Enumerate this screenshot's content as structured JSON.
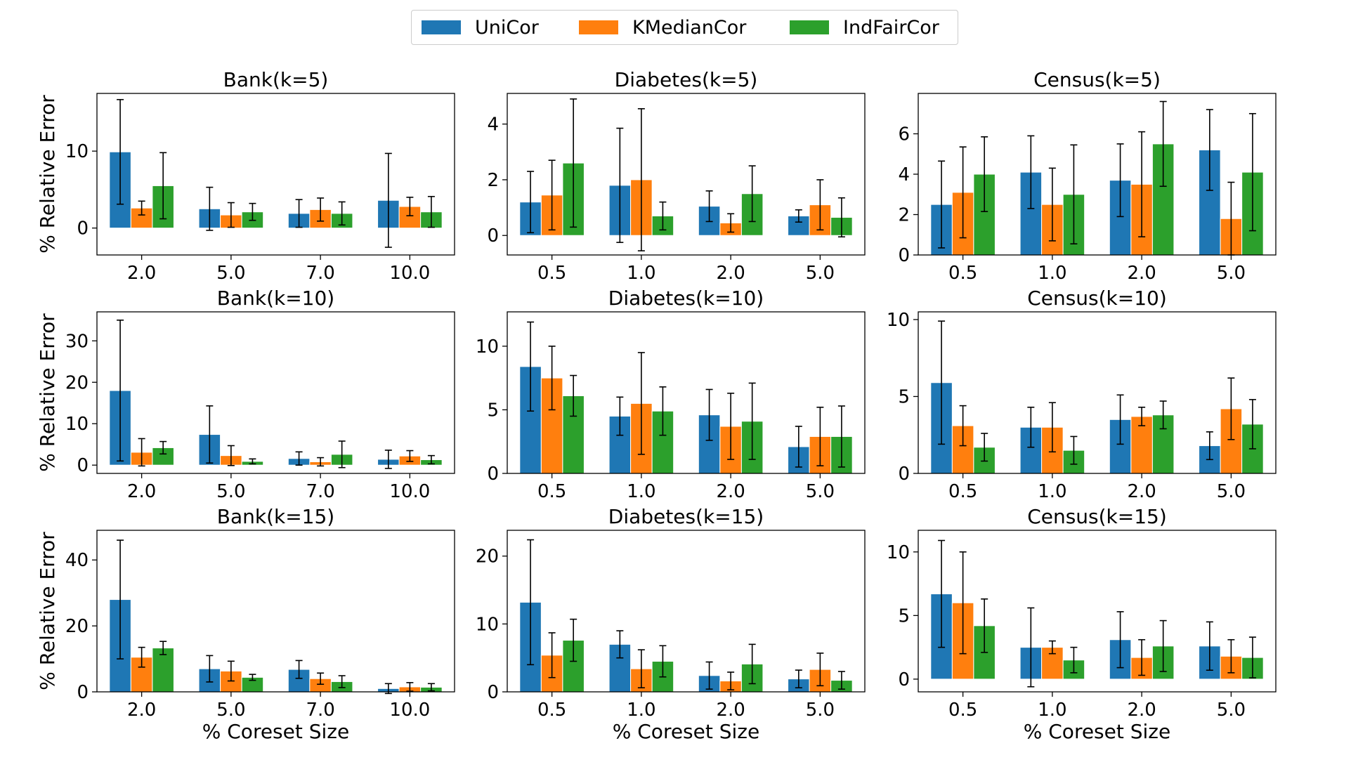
{
  "colors": {
    "UniCor": "#1f77b4",
    "KMedianCor": "#ff7f0e",
    "IndFairCor": "#2ca02c"
  },
  "legend": {
    "placement": "top-center",
    "entries": [
      "UniCor",
      "KMedianCor",
      "IndFairCor"
    ]
  },
  "chart_data": [
    {
      "type": "bar",
      "title": "Bank(k=5)",
      "xlabel": "",
      "ylabel": "% Relative Error",
      "categories": [
        "2.0",
        "5.0",
        "7.0",
        "10.0"
      ],
      "ylim": [
        -3.5,
        17.5
      ],
      "yticks": [
        0,
        10
      ],
      "series": [
        {
          "name": "UniCor",
          "values": [
            9.9,
            2.5,
            1.9,
            3.6
          ],
          "err": [
            6.8,
            2.8,
            1.8,
            6.1
          ]
        },
        {
          "name": "KMedianCor",
          "values": [
            2.6,
            1.7,
            2.4,
            2.8
          ],
          "err": [
            0.9,
            1.6,
            1.5,
            1.2
          ]
        },
        {
          "name": "IndFairCor",
          "values": [
            5.5,
            2.1,
            1.9,
            2.1
          ],
          "err": [
            4.3,
            1.1,
            1.5,
            2.0
          ]
        }
      ]
    },
    {
      "type": "bar",
      "title": "Diabetes(k=5)",
      "xlabel": "",
      "ylabel": "",
      "categories": [
        "0.5",
        "1.0",
        "2.0",
        "5.0"
      ],
      "ylim": [
        -0.7,
        5.1
      ],
      "yticks": [
        0,
        2,
        4
      ],
      "series": [
        {
          "name": "UniCor",
          "values": [
            1.2,
            1.8,
            1.05,
            0.7
          ],
          "err": [
            1.1,
            2.05,
            0.55,
            0.22
          ]
        },
        {
          "name": "KMedianCor",
          "values": [
            1.45,
            2.0,
            0.45,
            1.1
          ],
          "err": [
            1.25,
            2.55,
            0.33,
            0.9
          ]
        },
        {
          "name": "IndFairCor",
          "values": [
            2.6,
            0.7,
            1.5,
            0.65
          ],
          "err": [
            2.3,
            0.5,
            1.0,
            0.7
          ]
        }
      ]
    },
    {
      "type": "bar",
      "title": "Census(k=5)",
      "xlabel": "",
      "ylabel": "",
      "categories": [
        "0.5",
        "1.0",
        "2.0",
        "5.0"
      ],
      "ylim": [
        0,
        8.0
      ],
      "yticks": [
        0,
        2,
        4,
        6
      ],
      "series": [
        {
          "name": "UniCor",
          "values": [
            2.5,
            4.1,
            3.7,
            5.2
          ],
          "err": [
            2.15,
            1.8,
            1.8,
            2.0
          ]
        },
        {
          "name": "KMedianCor",
          "values": [
            3.1,
            2.5,
            3.5,
            1.8
          ],
          "err": [
            2.25,
            1.8,
            2.6,
            1.8
          ]
        },
        {
          "name": "IndFairCor",
          "values": [
            4.0,
            3.0,
            5.5,
            4.1
          ],
          "err": [
            1.85,
            2.45,
            2.1,
            2.9
          ]
        }
      ]
    },
    {
      "type": "bar",
      "title": "Bank(k=10)",
      "xlabel": "",
      "ylabel": "% Relative Error",
      "categories": [
        "2.0",
        "5.0",
        "7.0",
        "10.0"
      ],
      "ylim": [
        -2,
        37
      ],
      "yticks": [
        0,
        10,
        20,
        30
      ],
      "series": [
        {
          "name": "UniCor",
          "values": [
            18.0,
            7.4,
            1.6,
            1.4
          ],
          "err": [
            17.0,
            6.9,
            1.6,
            2.2
          ]
        },
        {
          "name": "KMedianCor",
          "values": [
            3.1,
            2.3,
            0.8,
            2.2
          ],
          "err": [
            3.3,
            2.4,
            1.0,
            1.3
          ]
        },
        {
          "name": "IndFairCor",
          "values": [
            4.2,
            0.9,
            2.6,
            1.3
          ],
          "err": [
            1.5,
            0.6,
            3.2,
            1.0
          ]
        }
      ]
    },
    {
      "type": "bar",
      "title": "Diabetes(k=10)",
      "xlabel": "",
      "ylabel": "",
      "categories": [
        "0.5",
        "1.0",
        "2.0",
        "5.0"
      ],
      "ylim": [
        0,
        12.7
      ],
      "yticks": [
        0,
        5,
        10
      ],
      "series": [
        {
          "name": "UniCor",
          "values": [
            8.4,
            4.5,
            4.6,
            2.1
          ],
          "err": [
            3.5,
            1.5,
            2.0,
            1.6
          ]
        },
        {
          "name": "KMedianCor",
          "values": [
            7.5,
            5.5,
            3.7,
            2.9
          ],
          "err": [
            2.5,
            4.0,
            2.6,
            2.3
          ]
        },
        {
          "name": "IndFairCor",
          "values": [
            6.1,
            4.9,
            4.1,
            2.9
          ],
          "err": [
            1.6,
            1.9,
            3.0,
            2.4
          ]
        }
      ]
    },
    {
      "type": "bar",
      "title": "Census(k=10)",
      "xlabel": "",
      "ylabel": "",
      "categories": [
        "0.5",
        "1.0",
        "2.0",
        "5.0"
      ],
      "ylim": [
        0,
        10.5
      ],
      "yticks": [
        0,
        5,
        10
      ],
      "series": [
        {
          "name": "UniCor",
          "values": [
            5.9,
            3.0,
            3.5,
            1.8
          ],
          "err": [
            4.0,
            1.3,
            1.6,
            0.9
          ]
        },
        {
          "name": "KMedianCor",
          "values": [
            3.1,
            3.0,
            3.7,
            4.2
          ],
          "err": [
            1.3,
            1.6,
            0.6,
            2.0
          ]
        },
        {
          "name": "IndFairCor",
          "values": [
            1.7,
            1.5,
            3.8,
            3.2
          ],
          "err": [
            0.9,
            0.9,
            0.9,
            1.6
          ]
        }
      ]
    },
    {
      "type": "bar",
      "title": "Bank(k=15)",
      "xlabel": "% Coreset Size",
      "ylabel": "% Relative Error",
      "categories": [
        "2.0",
        "5.0",
        "7.0",
        "10.0"
      ],
      "ylim": [
        0,
        49
      ],
      "yticks": [
        0,
        20,
        40
      ],
      "series": [
        {
          "name": "UniCor",
          "values": [
            28.0,
            7.0,
            6.8,
            1.0
          ],
          "err": [
            18.0,
            4.0,
            2.7,
            1.5
          ]
        },
        {
          "name": "KMedianCor",
          "values": [
            10.5,
            6.3,
            4.0,
            1.5
          ],
          "err": [
            3.0,
            3.0,
            1.7,
            1.3
          ]
        },
        {
          "name": "IndFairCor",
          "values": [
            13.3,
            4.4,
            3.1,
            1.4
          ],
          "err": [
            2.0,
            0.9,
            1.8,
            1.1
          ]
        }
      ]
    },
    {
      "type": "bar",
      "title": "Diabetes(k=15)",
      "xlabel": "% Coreset Size",
      "ylabel": "",
      "categories": [
        "0.5",
        "1.0",
        "2.0",
        "5.0"
      ],
      "ylim": [
        0,
        23.8
      ],
      "yticks": [
        0,
        10,
        20
      ],
      "series": [
        {
          "name": "UniCor",
          "values": [
            13.2,
            7.0,
            2.4,
            1.9
          ],
          "err": [
            9.2,
            2.0,
            2.0,
            1.3
          ]
        },
        {
          "name": "KMedianCor",
          "values": [
            5.4,
            3.4,
            1.6,
            3.3
          ],
          "err": [
            3.3,
            2.8,
            1.3,
            2.4
          ]
        },
        {
          "name": "IndFairCor",
          "values": [
            7.6,
            4.5,
            4.1,
            1.7
          ],
          "err": [
            3.1,
            2.3,
            2.9,
            1.3
          ]
        }
      ]
    },
    {
      "type": "bar",
      "title": "Census(k=15)",
      "xlabel": "% Coreset Size",
      "ylabel": "",
      "categories": [
        "0.5",
        "1.0",
        "2.0",
        "5.0"
      ],
      "ylim": [
        -1.0,
        11.7
      ],
      "yticks": [
        0,
        5,
        10
      ],
      "series": [
        {
          "name": "UniCor",
          "values": [
            6.7,
            2.5,
            3.1,
            2.6
          ],
          "err": [
            4.2,
            3.1,
            2.2,
            1.9
          ]
        },
        {
          "name": "KMedianCor",
          "values": [
            6.0,
            2.5,
            1.7,
            1.8
          ],
          "err": [
            4.0,
            0.5,
            1.4,
            1.3
          ]
        },
        {
          "name": "IndFairCor",
          "values": [
            4.2,
            1.5,
            2.6,
            1.7
          ],
          "err": [
            2.1,
            1.0,
            2.0,
            1.6
          ]
        }
      ]
    }
  ]
}
